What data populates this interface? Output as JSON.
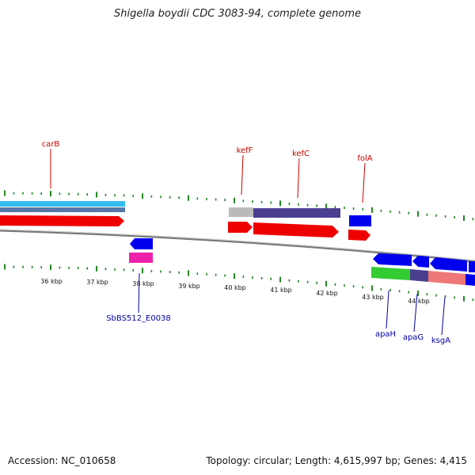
{
  "title": "Shigella boydii CDC 3083-94, complete genome",
  "footer": {
    "accession": "Accession: NC_010658",
    "summary": "Topology: circular; Length: 4,615,997 bp; Genes: 4,415"
  },
  "scale_labels": [
    "36 kbp",
    "37 kbp",
    "38 kbp",
    "39 kbp",
    "40 kbp",
    "41 kbp",
    "42 kbp",
    "43 kbp",
    "44 kbp"
  ],
  "colors": {
    "red_gene": "#ee0000",
    "blue_gene": "#0000ee",
    "cyan_gene": "#33bbee",
    "steel_gene": "#5577aa",
    "gray_gene": "#bbbbbb",
    "indigo_gene": "#4a3f8f",
    "magenta_gene": "#ee22aa",
    "green_gene": "#33cc33",
    "salmon_gene": "#ee7777",
    "tick_color": "#228822",
    "backbone": "#777777",
    "label_red": "#cc0000",
    "label_blue": "#0000aa"
  },
  "gene_labels": {
    "carB": "carB",
    "kefF": "kefF",
    "kefC": "kefC",
    "folA": "folA",
    "SbBS512_E0038": "SbBS512_E0038",
    "apaH": "apaH",
    "apaG": "apaG",
    "ksgA": "ksgA"
  }
}
